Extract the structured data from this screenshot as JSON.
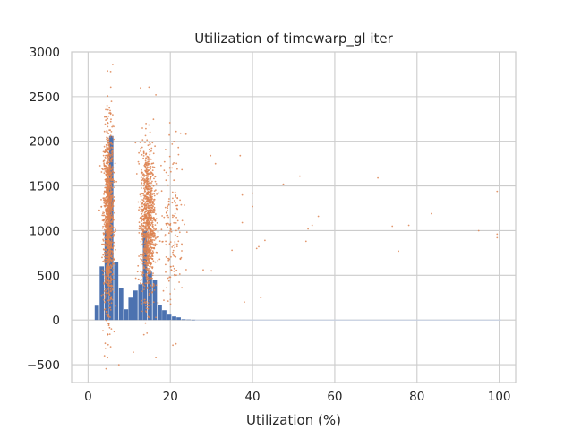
{
  "chart_data": {
    "type": "scatter",
    "title": "Utilization of timewarp_gl iter",
    "xlabel": "Utilization (%)",
    "ylabel": "",
    "xlim": [
      -4,
      104
    ],
    "ylim": [
      -700,
      3000
    ],
    "xticks": [
      0,
      20,
      40,
      60,
      80,
      100
    ],
    "yticks": [
      -500,
      0,
      500,
      1000,
      1500,
      2000,
      2500,
      3000
    ],
    "ytick_labels": [
      "−500",
      "0",
      "500",
      "1000",
      "1500",
      "2000",
      "2500",
      "3000"
    ],
    "grid": true,
    "legend": "none",
    "colors": {
      "histogram": "#4c72b0",
      "scatter": "#dd8452",
      "grid": "#cccccc",
      "axes_edge": "#cccccc",
      "text": "#262626"
    },
    "series": [
      {
        "type": "bar",
        "note": "histogram of utilization values (bin width ~1.17)",
        "x": [
          2.2,
          3.4,
          4.6,
          5.7,
          6.9,
          8.1,
          9.3,
          10.4,
          11.6,
          12.8,
          13.9,
          15.1,
          16.3,
          17.5,
          18.6,
          19.8,
          21.0,
          22.1,
          23.3,
          24.5,
          25.7
        ],
        "values": [
          160,
          600,
          1000,
          2060,
          650,
          360,
          120,
          250,
          330,
          400,
          1000,
          540,
          450,
          170,
          110,
          60,
          40,
          30,
          8,
          5,
          3
        ]
      },
      {
        "type": "scatter",
        "note": "approximate point clusters read from the figure",
        "clusters": [
          {
            "x_center": 5.0,
            "x_spread": 1.1,
            "y_center": 1150,
            "y_spread": 500,
            "count": 1300
          },
          {
            "x_center": 14.5,
            "x_spread": 1.6,
            "y_center": 1100,
            "y_spread": 420,
            "count": 1100
          },
          {
            "x_center": 20.5,
            "x_spread": 2.5,
            "y_center": 1100,
            "y_spread": 450,
            "count": 160
          }
        ],
        "points": [
          [
            6,
            2860
          ],
          [
            5.5,
            2780
          ],
          [
            16.5,
            2520
          ],
          [
            22.5,
            2090
          ],
          [
            23.8,
            2080
          ],
          [
            29.8,
            1840
          ],
          [
            31.0,
            1750
          ],
          [
            37.0,
            1840
          ],
          [
            47.5,
            1520
          ],
          [
            51.5,
            1610
          ],
          [
            40.0,
            1420
          ],
          [
            37.5,
            1400
          ],
          [
            56.0,
            1160
          ],
          [
            53.5,
            1020
          ],
          [
            54.5,
            1060
          ],
          [
            53.0,
            880
          ],
          [
            43.0,
            890
          ],
          [
            37.5,
            1090
          ],
          [
            35.0,
            780
          ],
          [
            41.0,
            800
          ],
          [
            41.5,
            820
          ],
          [
            40.0,
            1270
          ],
          [
            42.0,
            250
          ],
          [
            38.0,
            200
          ],
          [
            30.0,
            550
          ],
          [
            28.0,
            560
          ],
          [
            70.5,
            1590
          ],
          [
            74.0,
            1050
          ],
          [
            75.5,
            770
          ],
          [
            78.0,
            1060
          ],
          [
            83.5,
            1190
          ],
          [
            95.0,
            1000
          ],
          [
            99.5,
            1440
          ],
          [
            99.5,
            960
          ],
          [
            99.5,
            920
          ],
          [
            7.5,
            -500
          ],
          [
            4.0,
            -400
          ],
          [
            11.0,
            -360
          ],
          [
            16.5,
            -420
          ],
          [
            5.5,
            -300
          ]
        ]
      }
    ]
  }
}
